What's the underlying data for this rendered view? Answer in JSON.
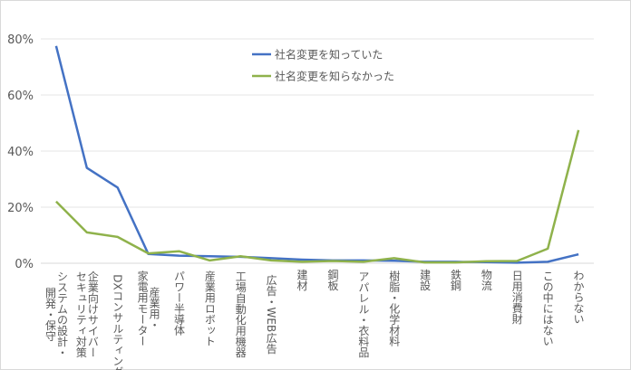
{
  "chart_data": {
    "type": "line",
    "categories": [
      [
        "システムの設計・",
        "開発・保守"
      ],
      [
        "企業向けサイバー",
        "セキュリティ対策"
      ],
      [
        "DXコンサルティング"
      ],
      [
        "産業用・",
        "家電用モーター"
      ],
      [
        "パワー半導体"
      ],
      [
        "産業用ロボット"
      ],
      [
        "工場自動化用機器"
      ],
      [
        "広告・WEB広告"
      ],
      [
        "建材"
      ],
      [
        "鋼板"
      ],
      [
        "アパレル・衣料品"
      ],
      [
        "樹脂・化学材料"
      ],
      [
        "建設"
      ],
      [
        "鉄鋼"
      ],
      [
        "物流"
      ],
      [
        "日用消費財"
      ],
      [
        "この中にはない"
      ],
      [
        "わからない"
      ]
    ],
    "series": [
      {
        "name": "社名変更を知っていた",
        "color": "#4472c4",
        "values": [
          77.5,
          34.0,
          27.0,
          3.3,
          2.7,
          2.5,
          2.3,
          1.8,
          1.3,
          1.0,
          1.0,
          0.9,
          0.5,
          0.5,
          0.4,
          0.2,
          0.5,
          3.2
        ]
      },
      {
        "name": "社名変更を知らなかった",
        "color": "#8fb24b",
        "values": [
          22.0,
          11.0,
          9.4,
          3.5,
          4.3,
          1.0,
          2.5,
          1.0,
          0.5,
          0.8,
          0.5,
          1.8,
          0.3,
          0.3,
          0.7,
          0.8,
          5.2,
          47.5
        ]
      }
    ],
    "yticks": [
      "0%",
      "20%",
      "40%",
      "60%",
      "80%"
    ],
    "ylim": [
      0,
      80
    ],
    "grid": true,
    "legend": "top-center",
    "xlabel": "",
    "ylabel": ""
  }
}
